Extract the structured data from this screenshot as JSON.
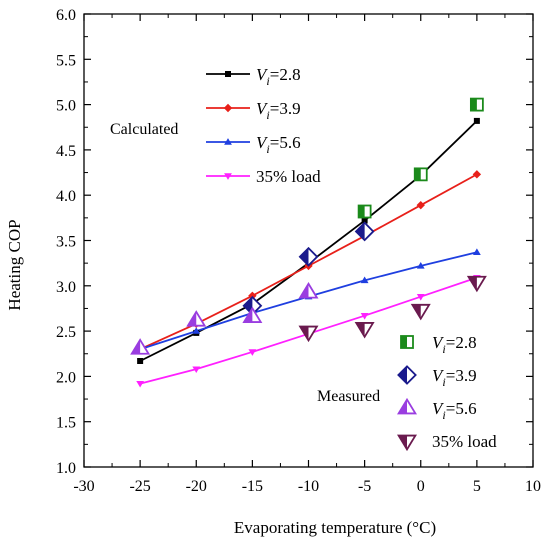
{
  "chart_data": {
    "type": "line",
    "xlabel": "Evaporating temperature (°C)",
    "ylabel": "Heating COP",
    "xlim": [
      -30,
      10
    ],
    "ylim": [
      1.0,
      6.0
    ],
    "xticks": [
      -30,
      -25,
      -20,
      -15,
      -10,
      -5,
      0,
      5,
      10
    ],
    "yticks": [
      1.0,
      1.5,
      2.0,
      2.5,
      3.0,
      3.5,
      4.0,
      4.5,
      5.0,
      5.5,
      6.0
    ],
    "xtick_labels": [
      "-30",
      "-25",
      "-20",
      "-15",
      "-10",
      "-5",
      "0",
      "5",
      "10"
    ],
    "ytick_labels": [
      "1.0",
      "1.5",
      "2.0",
      "2.5",
      "3.0",
      "3.5",
      "4.0",
      "4.5",
      "5.0",
      "5.5",
      "6.0"
    ],
    "grid": false,
    "legend_titles": {
      "calculated": "Calculated",
      "measured": "Measured"
    },
    "series": [
      {
        "key": "calc_28",
        "group": "calculated",
        "label_prefix": "V",
        "label_sub": "i",
        "label_suffix": "=2.8",
        "color": "#000000",
        "marker": "square",
        "x": [
          -25,
          -20,
          -15,
          -10,
          -5,
          0,
          5
        ],
        "y": [
          2.17,
          2.48,
          2.8,
          3.25,
          3.72,
          4.22,
          4.82
        ]
      },
      {
        "key": "calc_39",
        "group": "calculated",
        "label_prefix": "V",
        "label_sub": "i",
        "label_suffix": "=3.9",
        "color": "#e8201a",
        "marker": "diamond",
        "x": [
          -25,
          -20,
          -15,
          -10,
          -5,
          0,
          5
        ],
        "y": [
          2.3,
          2.58,
          2.89,
          3.22,
          3.55,
          3.89,
          4.23
        ]
      },
      {
        "key": "calc_56",
        "group": "calculated",
        "label_prefix": "V",
        "label_sub": "i",
        "label_suffix": "=5.6",
        "color": "#1f3fe0",
        "marker": "triangle-up",
        "x": [
          -25,
          -20,
          -15,
          -10,
          -5,
          0,
          5
        ],
        "y": [
          2.3,
          2.5,
          2.7,
          2.88,
          3.06,
          3.22,
          3.37
        ]
      },
      {
        "key": "calc_35",
        "group": "calculated",
        "label": "35% load",
        "color": "#ff20ff",
        "marker": "triangle-down",
        "x": [
          -25,
          -20,
          -15,
          -10,
          -5,
          0,
          5
        ],
        "y": [
          1.92,
          2.08,
          2.27,
          2.47,
          2.67,
          2.88,
          3.09
        ]
      },
      {
        "key": "meas_28",
        "group": "measured",
        "label_prefix": "V",
        "label_sub": "i",
        "label_suffix": "=2.8",
        "color": "#1b8a1b",
        "marker": "half-square",
        "x": [
          -5,
          0,
          5
        ],
        "y": [
          3.82,
          4.23,
          5.0
        ]
      },
      {
        "key": "meas_39",
        "group": "measured",
        "label_prefix": "V",
        "label_sub": "i",
        "label_suffix": "=3.9",
        "color": "#1a1a8c",
        "marker": "half-diamond",
        "x": [
          -15,
          -10,
          -5
        ],
        "y": [
          2.78,
          3.32,
          3.6
        ]
      },
      {
        "key": "meas_56",
        "group": "measured",
        "label_prefix": "V",
        "label_sub": "i",
        "label_suffix": "=5.6",
        "color": "#9a3de0",
        "marker": "half-triangle-up",
        "x": [
          -25,
          -20,
          -15,
          -10
        ],
        "y": [
          2.31,
          2.62,
          2.66,
          2.93
        ]
      },
      {
        "key": "meas_35",
        "group": "measured",
        "label": "35% load",
        "color": "#6a1a4e",
        "marker": "half-triangle-down",
        "x": [
          -10,
          -5,
          0,
          5
        ],
        "y": [
          2.49,
          2.53,
          2.73,
          3.04
        ]
      }
    ]
  }
}
